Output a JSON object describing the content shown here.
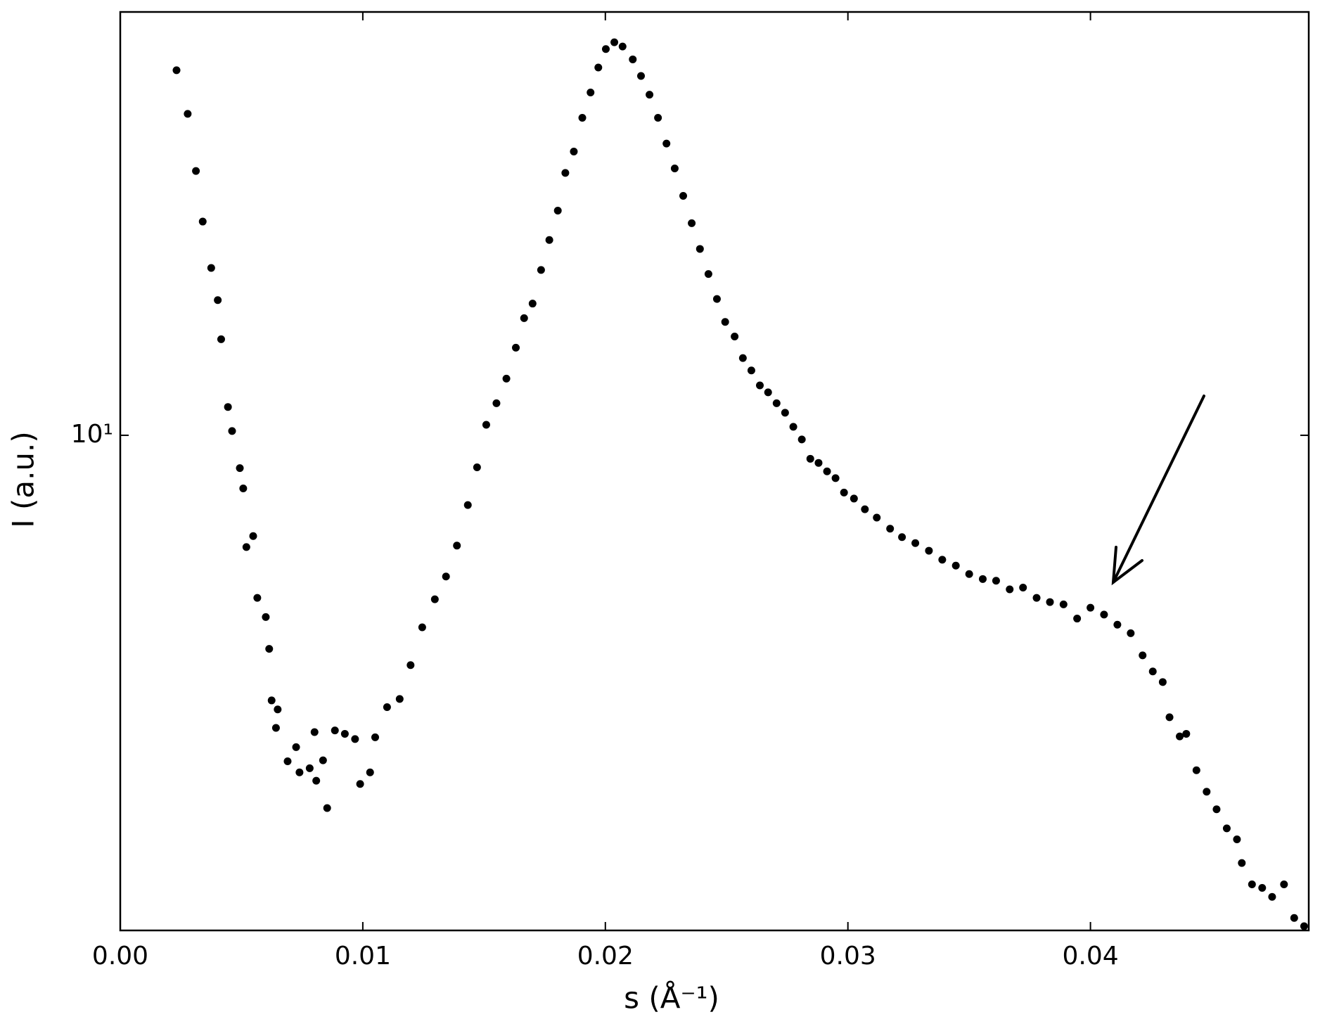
{
  "chart_data": {
    "type": "scatter",
    "x_label": "s (Å⁻¹)",
    "y_label": "I (a.u.)",
    "y_scale": "log",
    "color": "#000000",
    "xlim": [
      0,
      0.049
    ],
    "ylim": [
      1.01,
      71
    ],
    "xticks": [
      {
        "value": 0,
        "label": "0.00"
      },
      0.01,
      0.02,
      0.03,
      0.04
    ],
    "yticks": [
      {
        "value": 10,
        "label": "10¹"
      }
    ],
    "x": [
      0.00232,
      0.00278,
      0.00312,
      0.0034,
      0.00375,
      0.00402,
      0.00416,
      0.00444,
      0.00461,
      0.00493,
      0.00507,
      0.0052,
      0.00548,
      0.00565,
      0.006,
      0.00614,
      0.00624,
      0.00649,
      0.00642,
      0.0069,
      0.00725,
      0.00739,
      0.00781,
      0.00801,
      0.00808,
      0.00836,
      0.00853,
      0.00885,
      0.00926,
      0.00968,
      0.00989,
      0.0103,
      0.01051,
      0.011,
      0.01152,
      0.01197,
      0.01245,
      0.01297,
      0.01343,
      0.01388,
      0.01433,
      0.01471,
      0.01509,
      0.01551,
      0.01592,
      0.01631,
      0.01665,
      0.017,
      0.01735,
      0.01769,
      0.01804,
      0.01835,
      0.0187,
      0.01905,
      0.01939,
      0.01971,
      0.02002,
      0.02037,
      0.02071,
      0.02113,
      0.02147,
      0.02182,
      0.02217,
      0.02252,
      0.02286,
      0.02321,
      0.02356,
      0.0239,
      0.02425,
      0.0246,
      0.02494,
      0.02533,
      0.02567,
      0.02602,
      0.02637,
      0.02671,
      0.02706,
      0.02741,
      0.02775,
      0.0281,
      0.02845,
      0.02879,
      0.02914,
      0.02949,
      0.02984,
      0.03025,
      0.0307,
      0.03119,
      0.03174,
      0.03223,
      0.03278,
      0.03334,
      0.03389,
      0.03445,
      0.035,
      0.03556,
      0.03611,
      0.03667,
      0.03722,
      0.03778,
      0.03833,
      0.03889,
      0.03945,
      0.04,
      0.04056,
      0.04111,
      0.04166,
      0.04215,
      0.04257,
      0.04298,
      0.04326,
      0.04368,
      0.04395,
      0.04437,
      0.04479,
      0.0452,
      0.04562,
      0.04604,
      0.04624,
      0.04666,
      0.04708,
      0.04749,
      0.04798,
      0.0484,
      0.04881
    ],
    "values": [
      54.2,
      44.3,
      34.0,
      26.9,
      21.7,
      18.7,
      15.6,
      11.4,
      10.2,
      8.59,
      7.82,
      5.96,
      6.27,
      4.71,
      4.31,
      3.72,
      2.93,
      2.81,
      2.58,
      2.21,
      2.36,
      2.1,
      2.14,
      2.53,
      2.02,
      2.22,
      1.78,
      2.55,
      2.51,
      2.45,
      1.99,
      2.1,
      2.47,
      2.84,
      2.95,
      3.45,
      4.11,
      4.68,
      5.2,
      6.0,
      7.24,
      8.62,
      10.5,
      11.6,
      13.0,
      15.0,
      17.2,
      18.4,
      21.5,
      24.7,
      28.3,
      33.7,
      37.2,
      43.5,
      48.9,
      54.9,
      59.8,
      61.7,
      60.5,
      57.0,
      52.8,
      48.4,
      43.5,
      38.6,
      34.4,
      30.3,
      26.7,
      23.7,
      21.1,
      18.8,
      16.9,
      15.8,
      14.3,
      13.5,
      12.6,
      12.2,
      11.6,
      11.1,
      10.4,
      9.81,
      8.97,
      8.8,
      8.46,
      8.2,
      7.67,
      7.46,
      7.1,
      6.83,
      6.49,
      6.24,
      6.07,
      5.86,
      5.62,
      5.47,
      5.26,
      5.14,
      5.1,
      4.9,
      4.94,
      4.71,
      4.62,
      4.57,
      4.28,
      4.5,
      4.36,
      4.16,
      4.0,
      3.61,
      3.35,
      3.19,
      2.71,
      2.48,
      2.51,
      2.12,
      1.92,
      1.77,
      1.62,
      1.54,
      1.38,
      1.25,
      1.23,
      1.18,
      1.25,
      1.07,
      1.03
    ]
  }
}
